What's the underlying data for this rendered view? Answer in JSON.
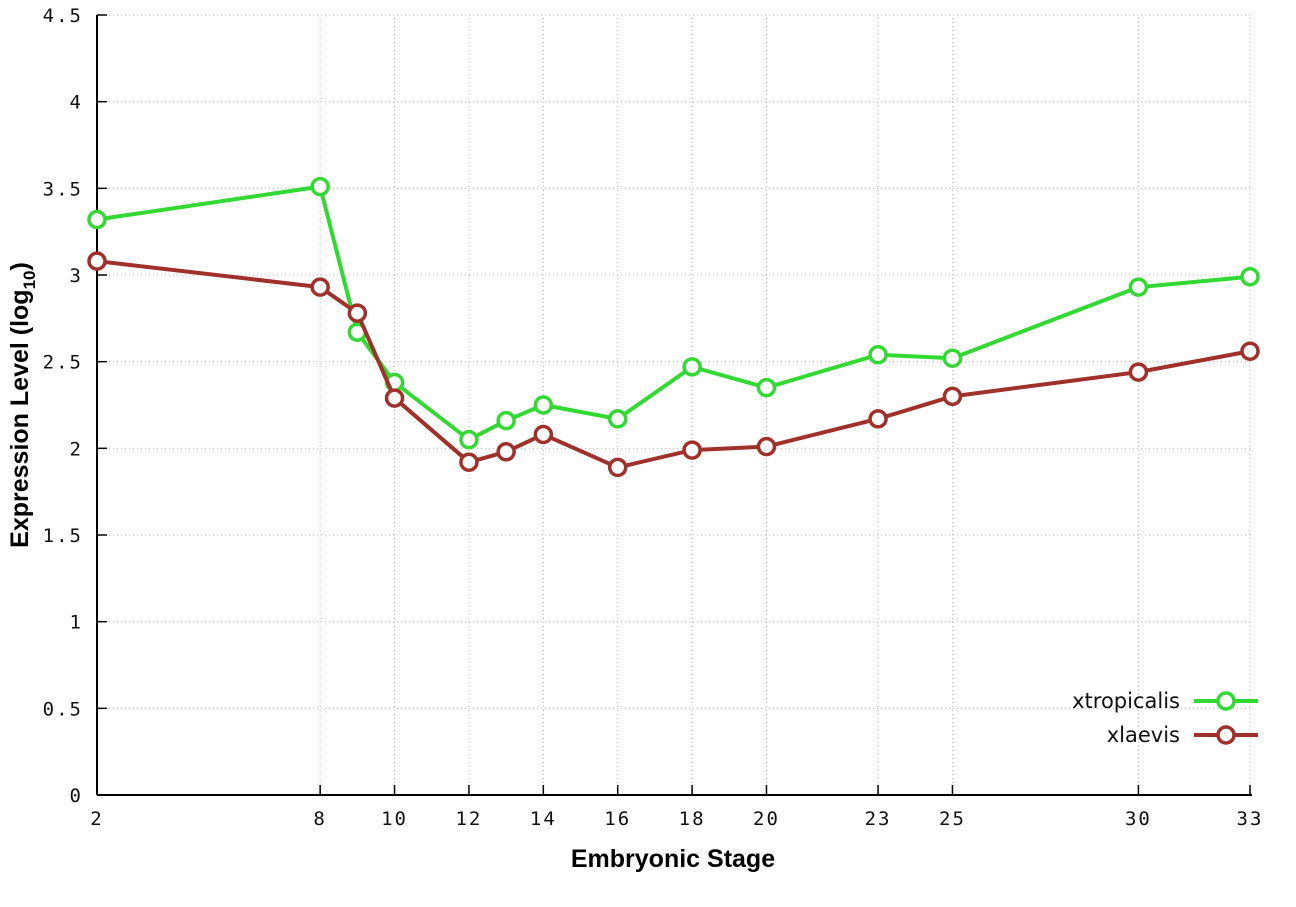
{
  "chart_data": {
    "type": "line",
    "title": "",
    "xlabel": "Embryonic Stage",
    "ylabel": "Expression Level (log10)",
    "xlim": [
      2,
      33
    ],
    "ylim": [
      0,
      4.5
    ],
    "xticks": [
      2,
      8,
      10,
      12,
      14,
      16,
      18,
      20,
      23,
      25,
      30,
      33
    ],
    "yticks": [
      0,
      0.5,
      1,
      1.5,
      2,
      2.5,
      3,
      3.5,
      4,
      4.5
    ],
    "ytick_labels": [
      "0",
      "0.5",
      "1",
      "1.5",
      "2",
      "2.5",
      "3",
      "3.5",
      "4",
      "4.5"
    ],
    "grid": true,
    "legend_position": "bottom-right",
    "marker": "open-circle",
    "x": [
      2,
      8,
      9,
      10,
      12,
      13,
      14,
      16,
      18,
      20,
      23,
      25,
      30,
      33
    ],
    "series": [
      {
        "name": "xtropicalis",
        "color": "#32d932",
        "values": [
          3.32,
          3.51,
          2.67,
          2.38,
          2.05,
          2.16,
          2.25,
          2.17,
          2.47,
          2.35,
          2.54,
          2.52,
          2.93,
          2.99
        ]
      },
      {
        "name": "xlaevis",
        "color": "#a0302a",
        "values": [
          3.08,
          2.93,
          2.78,
          2.29,
          1.92,
          1.98,
          2.08,
          1.89,
          1.99,
          2.01,
          2.17,
          2.3,
          2.44,
          2.56
        ]
      }
    ]
  },
  "labels": {
    "xlabel": "Embryonic Stage",
    "ylabel_prefix": "Expression Level (log",
    "ylabel_sub": "10",
    "ylabel_suffix": ")"
  }
}
